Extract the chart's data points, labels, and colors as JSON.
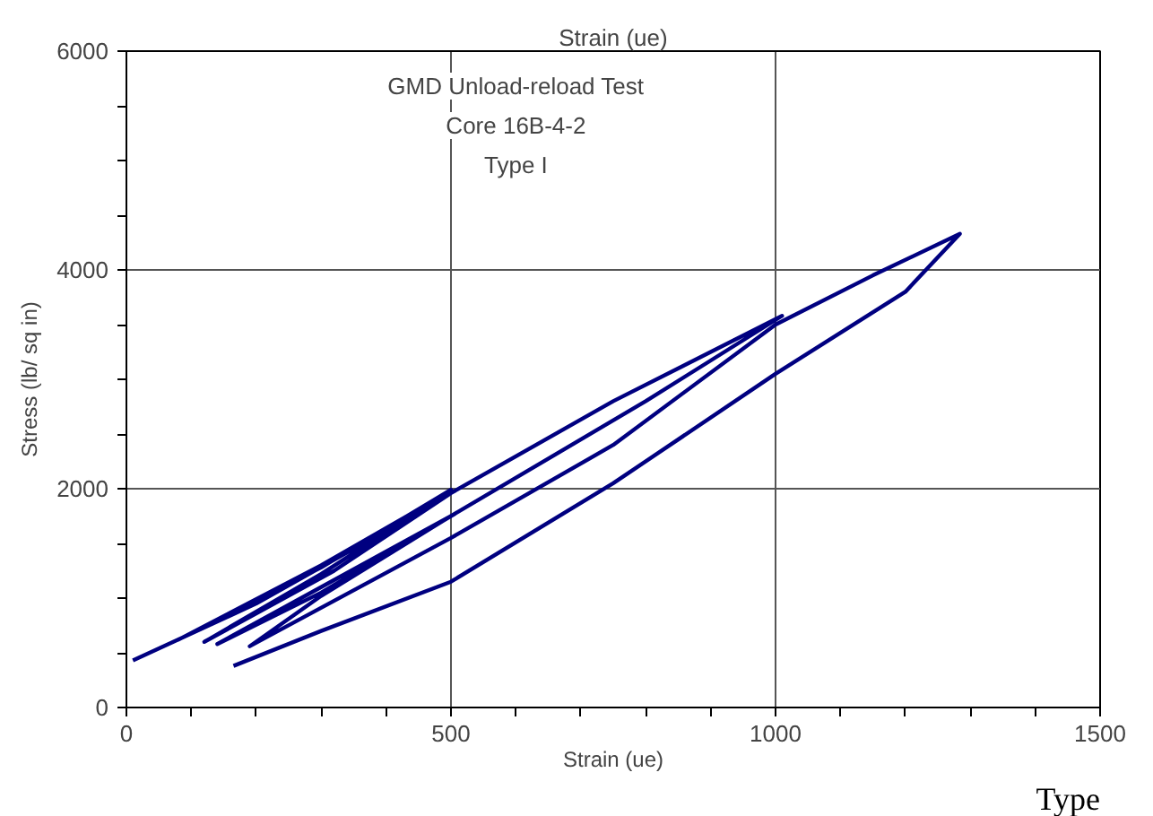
{
  "chart_data": {
    "type": "line",
    "xlabel": "Strain (ue)",
    "ylabel": "Stress (lb/ sq in)",
    "x2label": "Strain (ue)",
    "annotations": [
      "GMD Unload-reload Test",
      "Core 16B-4-2",
      "Type I",
      "Type"
    ],
    "xlim": [
      0,
      1500
    ],
    "ylim": [
      0,
      6000
    ],
    "xticks": [
      0,
      {
        "value": 100,
        "label": null
      },
      {
        "value": 200,
        "label": null
      },
      {
        "value": 300,
        "label": null
      },
      {
        "value": 400,
        "label": null
      },
      500,
      {
        "value": 600,
        "label": null
      },
      {
        "value": 700,
        "label": null
      },
      {
        "value": 800,
        "label": null
      },
      {
        "value": 900,
        "label": null
      },
      1000,
      {
        "value": 1100,
        "label": null
      },
      {
        "value": 1200,
        "label": null
      },
      {
        "value": 1300,
        "label": null
      },
      {
        "value": 1400,
        "label": null
      },
      1500
    ],
    "yticks": [
      0,
      {
        "value": 500,
        "label": null
      },
      {
        "value": 1000,
        "label": null
      },
      {
        "value": 1500,
        "label": null
      },
      2000,
      {
        "value": 2500,
        "label": null
      },
      {
        "value": 3000,
        "label": null
      },
      {
        "value": 3500,
        "label": null
      },
      4000,
      {
        "value": 4500,
        "label": null
      },
      {
        "value": 5000,
        "label": null
      },
      {
        "value": 5500,
        "label": null
      },
      6000
    ],
    "grid": true,
    "marker": "none",
    "line_style": "solid",
    "series": [
      {
        "color": "#000080",
        "x": [
          10,
          200,
          350,
          500,
          300,
          80,
          300,
          500,
          300,
          120,
          320,
          500,
          750,
          1010,
          800,
          500,
          300,
          140,
          300,
          500,
          300,
          190,
          500,
          750,
          1000,
          1150,
          1284,
          1200,
          1000,
          750,
          500,
          300,
          165
        ],
        "values": [
          430,
          950,
          1450,
          1990,
          1280,
          620,
          1300,
          1980,
          1220,
          600,
          1250,
          1960,
          2800,
          3580,
          2800,
          1750,
          1050,
          580,
          1100,
          1750,
          1020,
          560,
          1550,
          2400,
          3500,
          3950,
          4330,
          3800,
          3050,
          2050,
          1150,
          700,
          380
        ]
      }
    ]
  }
}
